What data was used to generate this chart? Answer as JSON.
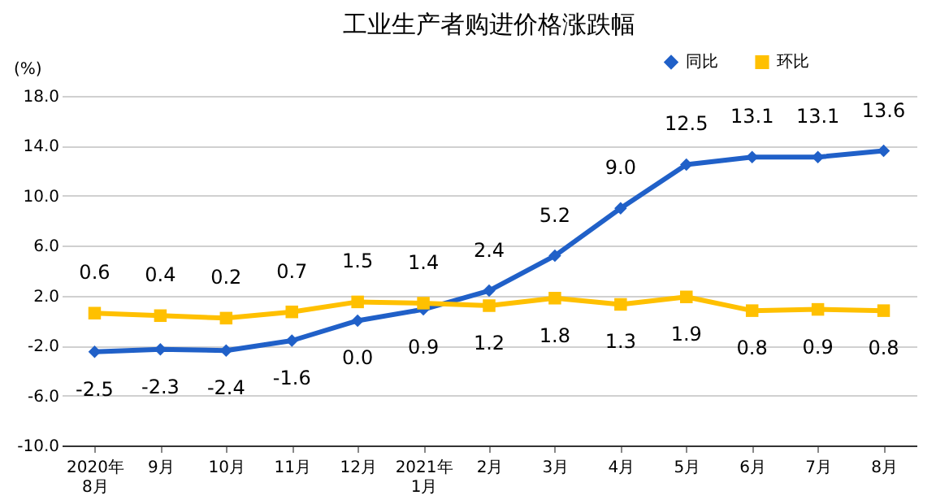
{
  "chart_data": {
    "type": "line",
    "title": "工业生产者购进价格涨跌幅",
    "ylabel": "(%)",
    "categories": [
      "2020年\n8月",
      "9月",
      "10月",
      "11月",
      "12月",
      "2021年\n1月",
      "2月",
      "3月",
      "4月",
      "5月",
      "6月",
      "7月",
      "8月"
    ],
    "series": [
      {
        "name": "同比",
        "color": "#2060c8",
        "marker": "diamond",
        "values": [
          -2.5,
          -2.3,
          -2.4,
          -1.6,
          0.0,
          0.9,
          2.4,
          5.2,
          9.0,
          12.5,
          13.1,
          13.1,
          13.6
        ],
        "value_labels": [
          "-2.5",
          "-2.3",
          "-2.4",
          "-1.6",
          "0.0",
          "0.9",
          "2.4",
          "5.2",
          "9.0",
          "12.5",
          "13.1",
          "13.1",
          "13.6"
        ]
      },
      {
        "name": "环比",
        "color": "#ffc000",
        "marker": "square",
        "values": [
          0.6,
          0.4,
          0.2,
          0.7,
          1.5,
          1.4,
          1.2,
          1.8,
          1.3,
          1.9,
          0.8,
          0.9,
          0.8
        ],
        "value_labels": [
          "0.6",
          "0.4",
          "0.2",
          "0.7",
          "1.5",
          "1.4",
          "1.2",
          "1.8",
          "1.3",
          "1.9",
          "0.8",
          "0.9",
          "0.8"
        ]
      }
    ],
    "ylim": [
      -10,
      18
    ],
    "yticks": [
      {
        "value": -10,
        "label": "-10.0"
      },
      {
        "value": -6,
        "label": "-6.0"
      },
      {
        "value": -2,
        "label": "-2.0"
      },
      {
        "value": 2,
        "label": "2.0"
      },
      {
        "value": 6,
        "label": "6.0"
      },
      {
        "value": 10,
        "label": "10.0"
      },
      {
        "value": 14,
        "label": "14.0"
      },
      {
        "value": 18,
        "label": "18.0"
      }
    ],
    "grid": "y",
    "legend": "top right",
    "line_style": "solid"
  }
}
